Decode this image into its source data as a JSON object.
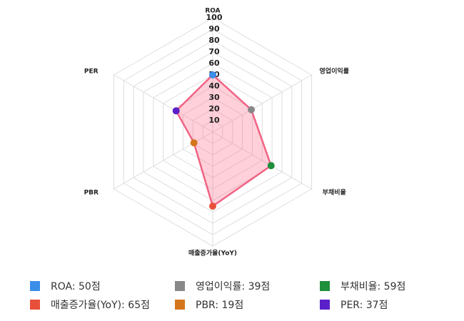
{
  "chart_data": {
    "type": "radar",
    "categories": [
      "ROA",
      "영업이익률",
      "부채비율",
      "매출증가율(YoY)",
      "PBR",
      "PER"
    ],
    "values": [
      50,
      39,
      59,
      65,
      19,
      37
    ],
    "value_labels": [
      "ROA: 50점",
      "영업이익률: 39점",
      "부채비율: 59점",
      "매출증가율(YoY): 65점",
      "PBR: 19점",
      "PER: 37점"
    ],
    "point_colors": [
      "#3b8ee8",
      "#888888",
      "#1e8f3a",
      "#e8503a",
      "#d4761c",
      "#5a1fc8"
    ],
    "line_color": "#f06383",
    "fill_color": "rgba(255,99,132,0.3)",
    "ylim": [
      0,
      100
    ],
    "yticks": [
      10,
      20,
      30,
      40,
      50,
      60,
      70,
      80,
      90,
      100
    ],
    "grid": true
  }
}
